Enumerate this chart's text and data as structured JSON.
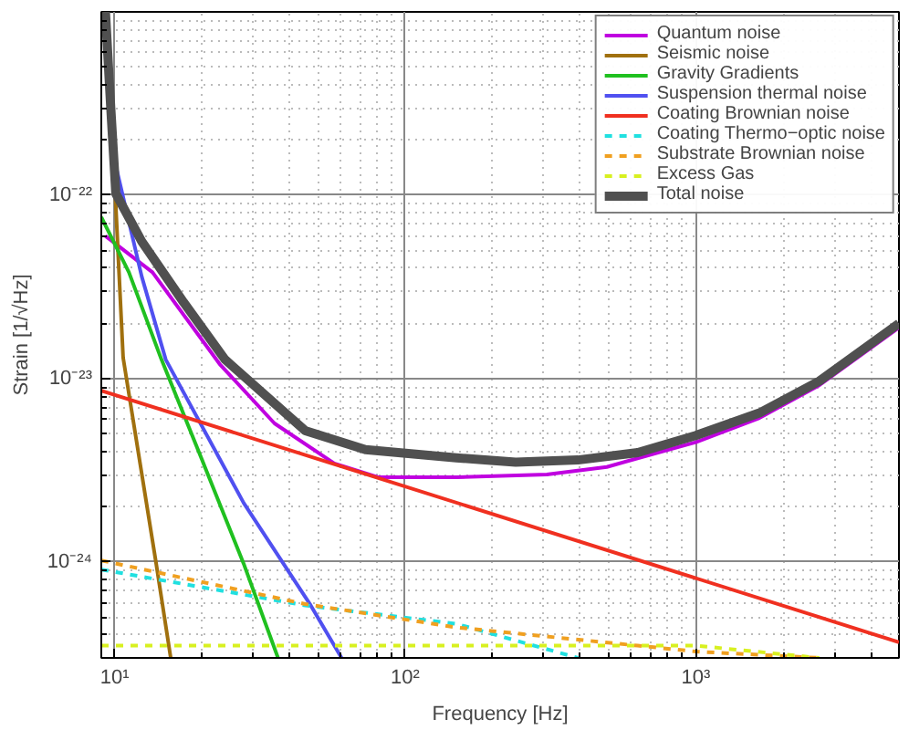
{
  "chart_data": {
    "type": "line",
    "xlabel": "Frequency [Hz]",
    "ylabel": "Strain [1/√Hz]",
    "log": "xy",
    "grid": true,
    "legend": "top right",
    "xlim": [
      9,
      5000
    ],
    "ylim": [
      3e-25,
      1e-21
    ],
    "xticks": [
      {
        "value": 10,
        "label": "10¹"
      },
      {
        "value": 20,
        "label": null
      },
      {
        "value": 30,
        "label": null
      },
      {
        "value": 40,
        "label": null
      },
      {
        "value": 50,
        "label": null
      },
      {
        "value": 60,
        "label": null
      },
      {
        "value": 70,
        "label": null
      },
      {
        "value": 80,
        "label": null
      },
      {
        "value": 90,
        "label": null
      },
      {
        "value": 100,
        "label": "10²"
      },
      {
        "value": 200,
        "label": null
      },
      {
        "value": 300,
        "label": null
      },
      {
        "value": 400,
        "label": null
      },
      {
        "value": 500,
        "label": null
      },
      {
        "value": 600,
        "label": null
      },
      {
        "value": 700,
        "label": null
      },
      {
        "value": 800,
        "label": null
      },
      {
        "value": 900,
        "label": null
      },
      {
        "value": 1000,
        "label": "10³"
      },
      {
        "value": 2000,
        "label": null
      },
      {
        "value": 3000,
        "label": null
      },
      {
        "value": 4000,
        "label": null
      }
    ],
    "yticks": [
      {
        "value": 4e-25,
        "label": null
      },
      {
        "value": 5e-25,
        "label": null
      },
      {
        "value": 6e-25,
        "label": null
      },
      {
        "value": 7e-25,
        "label": null
      },
      {
        "value": 8e-25,
        "label": null
      },
      {
        "value": 9e-25,
        "label": null
      },
      {
        "value": 1e-24,
        "label": "10⁻²⁴"
      },
      {
        "value": 2e-24,
        "label": null
      },
      {
        "value": 3e-24,
        "label": null
      },
      {
        "value": 4e-24,
        "label": null
      },
      {
        "value": 5e-24,
        "label": null
      },
      {
        "value": 6e-24,
        "label": null
      },
      {
        "value": 7e-24,
        "label": null
      },
      {
        "value": 8e-24,
        "label": null
      },
      {
        "value": 9e-24,
        "label": null
      },
      {
        "value": 1e-23,
        "label": "10⁻²³"
      },
      {
        "value": 2e-23,
        "label": null
      },
      {
        "value": 3e-23,
        "label": null
      },
      {
        "value": 4e-23,
        "label": null
      },
      {
        "value": 5e-23,
        "label": null
      },
      {
        "value": 6e-23,
        "label": null
      },
      {
        "value": 7e-23,
        "label": null
      },
      {
        "value": 8e-23,
        "label": null
      },
      {
        "value": 9e-23,
        "label": null
      },
      {
        "value": 1e-22,
        "label": "10⁻²²"
      },
      {
        "value": 2e-22,
        "label": null
      },
      {
        "value": 3e-22,
        "label": null
      },
      {
        "value": 4e-22,
        "label": null
      },
      {
        "value": 5e-22,
        "label": null
      },
      {
        "value": 6e-22,
        "label": null
      },
      {
        "value": 7e-22,
        "label": null
      },
      {
        "value": 8e-22,
        "label": null
      },
      {
        "value": 9e-22,
        "label": null
      }
    ],
    "series": [
      {
        "name": "Quantum noise",
        "color": "#c000e0",
        "line_style": "solid",
        "x": [
          9.3,
          13.5,
          23,
          35.5,
          57,
          80.5,
          150,
          307,
          494,
          806,
          1000,
          1655,
          2660,
          5000
        ],
        "values": [
          6e-23,
          3.8e-23,
          1.2e-23,
          5.7e-24,
          3.45e-24,
          2.9e-24,
          2.9e-24,
          3e-24,
          3.3e-24,
          4.1e-24,
          4.5e-24,
          6.1e-24,
          9.2e-24,
          1.9e-23
        ]
      },
      {
        "name": "Seismic noise",
        "color": "#a0700e",
        "line_style": "solid",
        "x": [
          9.3,
          10,
          10.7,
          13.9,
          15.6
        ],
        "values": [
          1e-21,
          1.2e-22,
          1.3e-23,
          9.8e-25,
          3e-25
        ]
      },
      {
        "name": "Gravity Gradients",
        "color": "#20c020",
        "line_style": "solid",
        "x": [
          9,
          11.2,
          14.5,
          20,
          27.8,
          36.5
        ],
        "values": [
          7.6e-23,
          3.8e-23,
          1.27e-23,
          3.6e-24,
          9.8e-25,
          3e-25
        ]
      },
      {
        "name": "Suspension thermal noise",
        "color": "#5050f0",
        "line_style": "solid",
        "x": [
          9.7,
          12.4,
          15,
          27.8,
          47.3,
          60.4
        ],
        "values": [
          1.9e-22,
          3.6e-23,
          1.27e-23,
          2.1e-24,
          5.8e-25,
          3e-25
        ]
      },
      {
        "name": "Coating Brownian noise",
        "color": "#f03020",
        "line_style": "solid",
        "x": [
          9,
          5000
        ],
        "values": [
          8.6e-24,
          3.65e-25
        ]
      },
      {
        "name": "Coating Thermo−optic noise",
        "color": "#20e0e0",
        "line_style": "dashed",
        "x": [
          9,
          45.3,
          150,
          393
        ],
        "values": [
          9.1e-25,
          5.8e-25,
          4.6e-25,
          3e-25
        ]
      },
      {
        "name": "Substrate Brownian noise",
        "color": "#f0a020",
        "line_style": "dashed",
        "x": [
          9,
          45.3,
          150,
          631,
          1000,
          2660
        ],
        "values": [
          1.02e-24,
          5.9e-25,
          4.4e-25,
          3.5e-25,
          3.25e-25,
          3e-25
        ]
      },
      {
        "name": "Excess Gas",
        "color": "#d8f020",
        "line_style": "dashed",
        "x": [
          9,
          1000,
          2660
        ],
        "values": [
          3.5e-25,
          3.5e-25,
          3e-25
        ]
      },
      {
        "name": "Total noise",
        "color": "#505050",
        "line_style": "solid",
        "x": [
          9.3,
          9.7,
          10.1,
          12.4,
          17.3,
          24,
          45.3,
          73,
          150,
          240,
          393,
          631,
          1000,
          1655,
          2660,
          5000
        ],
        "values": [
          1e-21,
          3e-22,
          1.02e-22,
          5.6e-23,
          2.6e-23,
          1.27e-23,
          5.2e-24,
          4.1e-24,
          3.7e-24,
          3.5e-24,
          3.6e-24,
          3.95e-24,
          4.9e-24,
          6.5e-24,
          9.7e-24,
          2e-23
        ]
      }
    ]
  }
}
